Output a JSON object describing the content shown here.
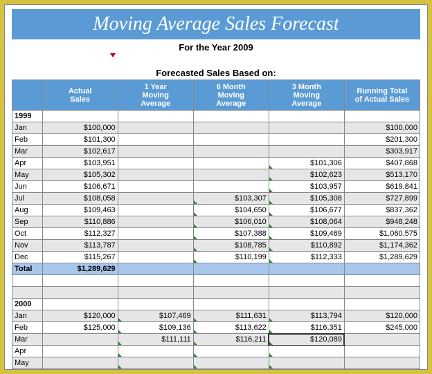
{
  "title": "Moving Average Sales Forecast",
  "subtitle": "For the Year 2009",
  "section_title": "Forecasted Sales Based on:",
  "headers": {
    "actual": "Actual\nSales",
    "avg1y": "1 Year\nMoving\nAverage",
    "avg6m": "6 Month\nMoving\nAverage",
    "avg3m": "3 Month\nMoving\nAverage",
    "running": "Running Total\nof Actual Sales"
  },
  "tbl_colors": {
    "header_bg": "#5b9bd5",
    "header_fg": "#ffffff",
    "zebra_bg": "#e6e6e6",
    "total_bg": "#a7c7ed",
    "border": "#888888",
    "page_bg": "#ffffff",
    "outer_bg": "#d4c241"
  },
  "years": [
    {
      "year": "1999",
      "rows": [
        {
          "m": "Jan",
          "actual": "$100,000",
          "avg1y": "",
          "avg6m": "",
          "avg3m": "",
          "run": "$100,000"
        },
        {
          "m": "Feb",
          "actual": "$101,300",
          "avg1y": "",
          "avg6m": "",
          "avg3m": "",
          "run": "$201,300"
        },
        {
          "m": "Mar",
          "actual": "$102,617",
          "avg1y": "",
          "avg6m": "",
          "avg3m": "",
          "run": "$303,917"
        },
        {
          "m": "Apr",
          "actual": "$103,951",
          "avg1y": "",
          "avg6m": "",
          "avg3m": "$101,306",
          "run": "$407,868",
          "g3": true
        },
        {
          "m": "May",
          "actual": "$105,302",
          "avg1y": "",
          "avg6m": "",
          "avg3m": "$102,623",
          "run": "$513,170",
          "g3": true
        },
        {
          "m": "Jun",
          "actual": "$106,671",
          "avg1y": "",
          "avg6m": "",
          "avg3m": "$103,957",
          "run": "$619,841",
          "g3": true
        },
        {
          "m": "Jul",
          "actual": "$108,058",
          "avg1y": "",
          "avg6m": "$103,307",
          "avg3m": "$105,308",
          "run": "$727,899",
          "g6": true,
          "g3": true
        },
        {
          "m": "Aug",
          "actual": "$109,463",
          "avg1y": "",
          "avg6m": "$104,650",
          "avg3m": "$106,677",
          "run": "$837,362",
          "g6": true,
          "g3": true
        },
        {
          "m": "Sep",
          "actual": "$110,886",
          "avg1y": "",
          "avg6m": "$106,010",
          "avg3m": "$108,064",
          "run": "$948,248",
          "g6": true,
          "g3": true
        },
        {
          "m": "Oct",
          "actual": "$112,327",
          "avg1y": "",
          "avg6m": "$107,388",
          "avg3m": "$109,469",
          "run": "$1,060,575",
          "g6": true,
          "g3": true
        },
        {
          "m": "Nov",
          "actual": "$113,787",
          "avg1y": "",
          "avg6m": "$108,785",
          "avg3m": "$110,892",
          "run": "$1,174,362",
          "g6": true,
          "g3": true
        },
        {
          "m": "Dec",
          "actual": "$115,267",
          "avg1y": "",
          "avg6m": "$110,199",
          "avg3m": "$112,333",
          "run": "$1,289,629",
          "g6": true,
          "g3": true
        }
      ],
      "total": {
        "label": "Total",
        "actual": "$1,289,629"
      }
    },
    {
      "year": "2000",
      "rows": [
        {
          "m": "Jan",
          "actual": "$120,000",
          "avg1y": "$107,469",
          "avg6m": "$111,631",
          "avg3m": "$113,794",
          "run": "$120,000",
          "g1": true,
          "g6": true,
          "g3": true
        },
        {
          "m": "Feb",
          "actual": "$125,000",
          "avg1y": "$109,136",
          "avg6m": "$113,622",
          "avg3m": "$116,351",
          "run": "$245,000",
          "g1": true,
          "g6": true,
          "g3": true
        },
        {
          "m": "Mar",
          "actual": "",
          "avg1y": "$111,111",
          "avg6m": "$116,211",
          "avg3m": "$120,089",
          "run": "",
          "g1": true,
          "g6": true,
          "g3": true,
          "sel3": true
        },
        {
          "m": "Apr",
          "actual": "",
          "avg1y": "",
          "avg6m": "",
          "avg3m": "",
          "run": "",
          "g1": true,
          "g6": true,
          "g3": true
        },
        {
          "m": "May",
          "actual": "",
          "avg1y": "",
          "avg6m": "",
          "avg3m": "",
          "run": "",
          "g1": true,
          "g6": true,
          "g3": true
        }
      ]
    }
  ]
}
